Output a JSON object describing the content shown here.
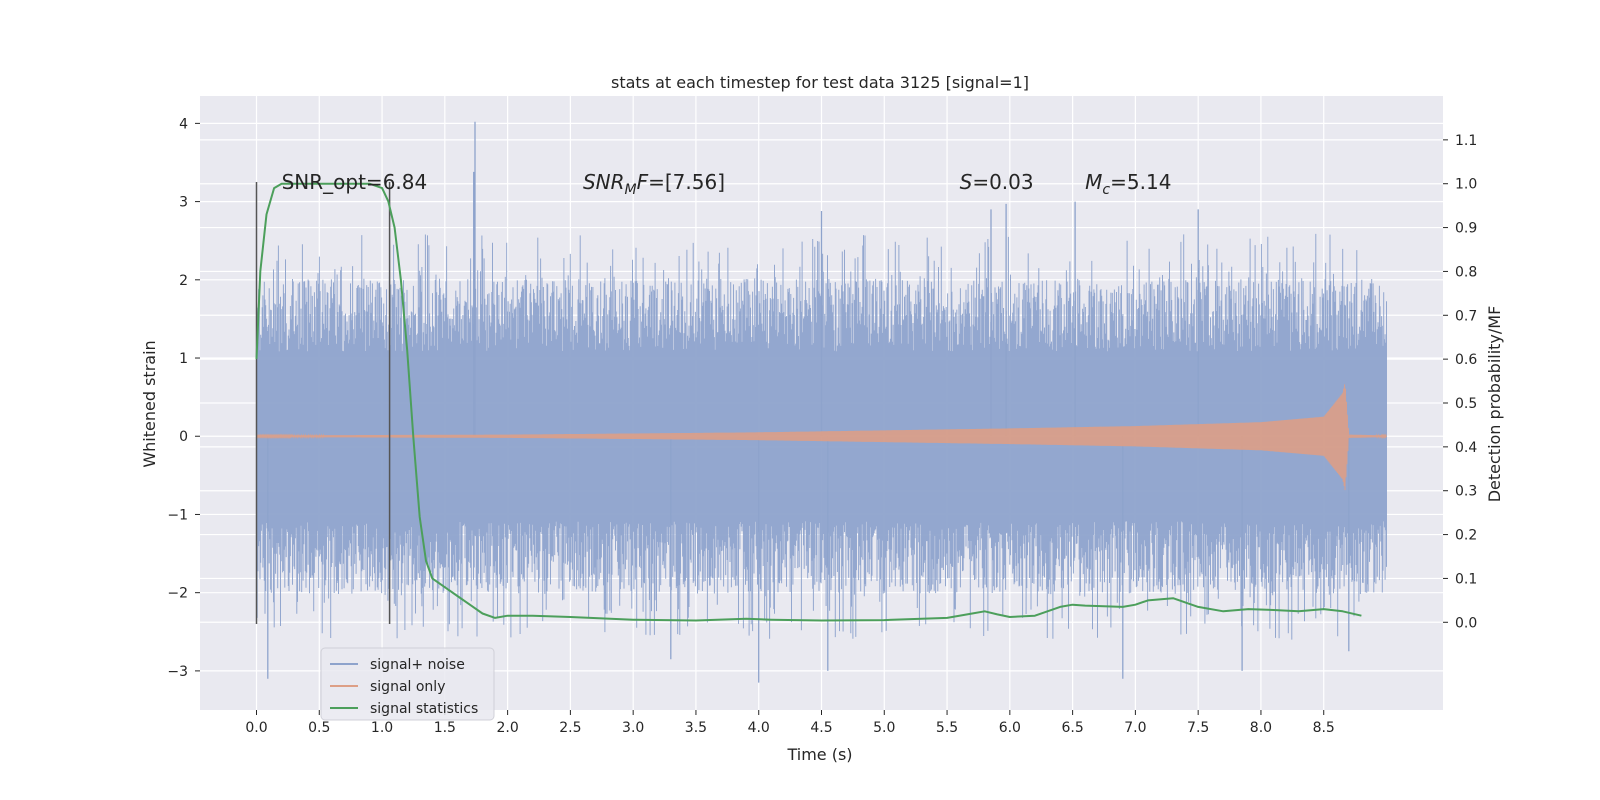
{
  "chart_data": {
    "type": "line",
    "title": "stats at each timestep for test data 3125 [signal=1]",
    "xlabel": "Time (s)",
    "ylabel_left": "Whitened strain",
    "ylabel_right": "Detection probability/MF",
    "xlim": [
      -0.45,
      9.45
    ],
    "ylim_left": [
      -3.5,
      4.35
    ],
    "ylim_right": [
      -0.2,
      1.2
    ],
    "grid": true,
    "x_ticks": [
      "0.0",
      "0.5",
      "1.0",
      "1.5",
      "2.0",
      "2.5",
      "3.0",
      "3.5",
      "4.0",
      "4.5",
      "5.0",
      "5.5",
      "6.0",
      "6.5",
      "7.0",
      "7.5",
      "8.0",
      "8.5"
    ],
    "x_tick_values": [
      0.0,
      0.5,
      1.0,
      1.5,
      2.0,
      2.5,
      3.0,
      3.5,
      4.0,
      4.5,
      5.0,
      5.5,
      6.0,
      6.5,
      7.0,
      7.5,
      8.0,
      8.5
    ],
    "y_left_ticks": [
      "−3",
      "−2",
      "−1",
      "0",
      "1",
      "2",
      "3",
      "4"
    ],
    "y_left_tick_values": [
      -3,
      -2,
      -1,
      0,
      1,
      2,
      3,
      4
    ],
    "y_right_ticks": [
      "0.0",
      "0.1",
      "0.2",
      "0.3",
      "0.4",
      "0.5",
      "0.6",
      "0.7",
      "0.8",
      "0.9",
      "1.0",
      "1.1"
    ],
    "y_right_tick_values": [
      0.0,
      0.1,
      0.2,
      0.3,
      0.4,
      0.5,
      0.6,
      0.7,
      0.8,
      0.9,
      1.0,
      1.1
    ],
    "vertical_markers": [
      0.0,
      1.06
    ],
    "vertical_marker_range": [
      -2.4,
      3.25
    ],
    "annotations": [
      {
        "name": "snr-opt",
        "x": 0.2,
        "y": 3.25,
        "text": "SNR_opt=6.84"
      },
      {
        "name": "snr-mf",
        "x": 2.6,
        "y": 3.25,
        "prefix": "SNR",
        "sub": "M",
        "suffix": "F=[7.56]"
      },
      {
        "name": "spin",
        "x": 5.6,
        "y": 3.25,
        "prefix": "S",
        "sub": "",
        "suffix": "=0.03"
      },
      {
        "name": "chirp-mass",
        "x": 6.6,
        "y": 3.25,
        "prefix": "M",
        "sub": "c",
        "suffix": "=5.14"
      }
    ],
    "series": [
      {
        "name": "signal+ noise",
        "axis": "left",
        "color": "#8ea3cc",
        "t_range": [
          0.0,
          9.0
        ],
        "samples": 1600,
        "typical_abs": 1.55,
        "spikes": [
          {
            "t": 1.74,
            "v": 4.02
          },
          {
            "t": 1.73,
            "v": 3.38
          },
          {
            "t": 4.5,
            "v": 2.88
          },
          {
            "t": 5.97,
            "v": 2.97
          },
          {
            "t": 6.52,
            "v": 3.0
          },
          {
            "t": 4.0,
            "v": -3.15
          },
          {
            "t": 0.09,
            "v": -3.1
          },
          {
            "t": 6.9,
            "v": -3.1
          },
          {
            "t": 3.3,
            "v": -2.85
          },
          {
            "t": 7.85,
            "v": -3.0
          },
          {
            "t": 8.7,
            "v": -2.75
          },
          {
            "t": 4.55,
            "v": -3.0
          },
          {
            "t": 5.85,
            "v": 2.9
          },
          {
            "t": 7.5,
            "v": 2.9
          }
        ]
      },
      {
        "name": "signal only",
        "axis": "left",
        "color": "#dd9f86",
        "t_range": [
          0.0,
          9.0
        ],
        "envelope": {
          "t": [
            0.0,
            2.0,
            4.0,
            6.0,
            7.0,
            8.0,
            8.5,
            8.65,
            8.67,
            8.7,
            9.0
          ],
          "amp": [
            0.01,
            0.02,
            0.05,
            0.1,
            0.13,
            0.18,
            0.25,
            0.55,
            0.69,
            0.02,
            0.01
          ]
        }
      },
      {
        "name": "signal statistics",
        "axis": "right",
        "color": "#4c9f5b",
        "x": [
          0.0,
          0.03,
          0.08,
          0.14,
          0.2,
          0.3,
          0.5,
          0.7,
          0.9,
          1.0,
          1.05,
          1.1,
          1.15,
          1.2,
          1.25,
          1.3,
          1.35,
          1.4,
          1.5,
          1.6,
          1.7,
          1.8,
          1.9,
          2.0,
          2.2,
          2.5,
          3.0,
          3.5,
          3.9,
          4.1,
          4.5,
          5.0,
          5.5,
          5.7,
          5.8,
          5.9,
          6.0,
          6.2,
          6.4,
          6.5,
          6.6,
          6.9,
          7.0,
          7.1,
          7.3,
          7.5,
          7.7,
          7.9,
          8.1,
          8.3,
          8.5,
          8.65,
          8.8
        ],
        "y": [
          0.6,
          0.8,
          0.93,
          0.99,
          1.0,
          1.0,
          1.0,
          1.0,
          1.0,
          0.99,
          0.96,
          0.9,
          0.78,
          0.62,
          0.42,
          0.24,
          0.14,
          0.1,
          0.08,
          0.06,
          0.04,
          0.02,
          0.01,
          0.015,
          0.015,
          0.012,
          0.006,
          0.004,
          0.008,
          0.006,
          0.004,
          0.005,
          0.01,
          0.02,
          0.025,
          0.018,
          0.012,
          0.015,
          0.035,
          0.04,
          0.038,
          0.035,
          0.04,
          0.05,
          0.055,
          0.035,
          0.025,
          0.03,
          0.028,
          0.025,
          0.03,
          0.025,
          0.015
        ]
      }
    ],
    "legend": {
      "position": "lower-left",
      "entries": [
        "signal+ noise",
        "signal only",
        "signal statistics"
      ]
    }
  },
  "colors": {
    "plot_background": "#e9e9f0",
    "grid": "#ffffff",
    "marker_line": "#555555"
  }
}
